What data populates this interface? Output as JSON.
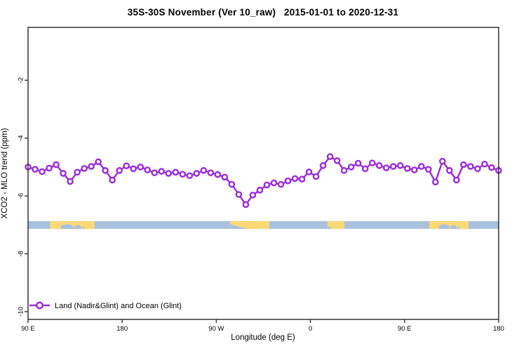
{
  "title": "35S-30S November (Ver 10_raw)   2015-01-01 to 2020-12-31",
  "chart_data": {
    "type": "line",
    "title": "35S-30S November (Ver 10_raw)   2015-01-01 to 2020-12-31",
    "xlabel": "Longitude (deg E)",
    "ylabel": "XCO2 - MLO trend (ppm)",
    "grid": false,
    "x_axis": {
      "span_deg": 450,
      "tick_positions_deg": [
        0,
        90,
        180,
        270,
        360,
        450
      ],
      "tick_labels": [
        "90 E",
        "180",
        "90 W",
        "0",
        "90 E",
        "180"
      ]
    },
    "y_axis": {
      "ticks": [
        -2,
        -4,
        -6,
        -8,
        -10
      ],
      "tick_labels": [
        "-2",
        "-4",
        "-6",
        "-8",
        "-10"
      ],
      "ylim": [
        -10.4,
        -0.2
      ]
    },
    "legend": {
      "position": "bottom-left",
      "entries": [
        {
          "label": "Land (Nadir&Glint) and Ocean (Glint)",
          "marker": "open-circle-line"
        }
      ]
    },
    "series": [
      {
        "name": "Land (Nadir&Glint) and Ocean (Glint)",
        "color": "#9B2BD8",
        "marker": "open-circle",
        "x_start_deg": 0,
        "x_step_deg": 6.7164,
        "values": [
          -5.0,
          -5.08,
          -5.16,
          -5.04,
          -4.92,
          -5.22,
          -5.5,
          -5.18,
          -5.05,
          -4.98,
          -4.82,
          -5.12,
          -5.45,
          -5.12,
          -4.96,
          -5.06,
          -5.0,
          -5.1,
          -5.2,
          -5.15,
          -5.22,
          -5.18,
          -5.25,
          -5.3,
          -5.22,
          -5.12,
          -5.2,
          -5.26,
          -5.35,
          -5.6,
          -5.95,
          -6.3,
          -5.97,
          -5.8,
          -5.62,
          -5.55,
          -5.6,
          -5.48,
          -5.4,
          -5.42,
          -5.17,
          -5.33,
          -4.95,
          -4.64,
          -4.78,
          -5.12,
          -5.0,
          -4.87,
          -5.06,
          -4.86,
          -4.95,
          -5.03,
          -4.98,
          -4.95,
          -5.05,
          -5.1,
          -4.98,
          -5.08,
          -5.52,
          -4.8,
          -5.12,
          -5.45,
          -4.92,
          -4.98,
          -5.06,
          -4.9,
          -5.02,
          -5.12
        ]
      }
    ],
    "map_band": {
      "description": "ocean-land strip showing 35S-30S latitude band geography",
      "value_range_ppm": [
        -6.87,
        -7.14
      ],
      "ocean_color": "#AAC1DD",
      "land_color": "#FBD977",
      "land_patches": [
        {
          "name": "australia-west-copy",
          "start_deg": 21.1,
          "end_deg": 63.7,
          "bites": [
            {
              "s": 0.24,
              "e": 0.52,
              "d": 0.55,
              "shape": "hump"
            },
            {
              "s": 0.54,
              "e": 0.7,
              "d": 0.45,
              "shape": "hump"
            },
            {
              "s": 0.72,
              "e": 0.77,
              "d": 0.25,
              "shape": "hump"
            }
          ]
        },
        {
          "name": "south-america",
          "start_deg": 193.1,
          "end_deg": 230.7,
          "bites": [
            {
              "s": 0.0,
              "e": 0.45,
              "d": 0.6,
              "shape": "wedge-left"
            }
          ]
        },
        {
          "name": "south-africa",
          "start_deg": 286.3,
          "end_deg": 302.4,
          "bites": [
            {
              "s": 0.0,
              "e": 0.3,
              "d": 0.35,
              "shape": "wedge-left"
            }
          ]
        },
        {
          "name": "australia-east-copy",
          "start_deg": 383.6,
          "end_deg": 421.2,
          "bites": [
            {
              "s": 0.24,
              "e": 0.52,
              "d": 0.55,
              "shape": "hump"
            },
            {
              "s": 0.54,
              "e": 0.7,
              "d": 0.45,
              "shape": "hump"
            },
            {
              "s": 0.72,
              "e": 0.77,
              "d": 0.25,
              "shape": "hump"
            }
          ]
        }
      ]
    },
    "colors": {
      "axis": "#333333",
      "text": "#000000",
      "background": "#ffffff"
    }
  }
}
